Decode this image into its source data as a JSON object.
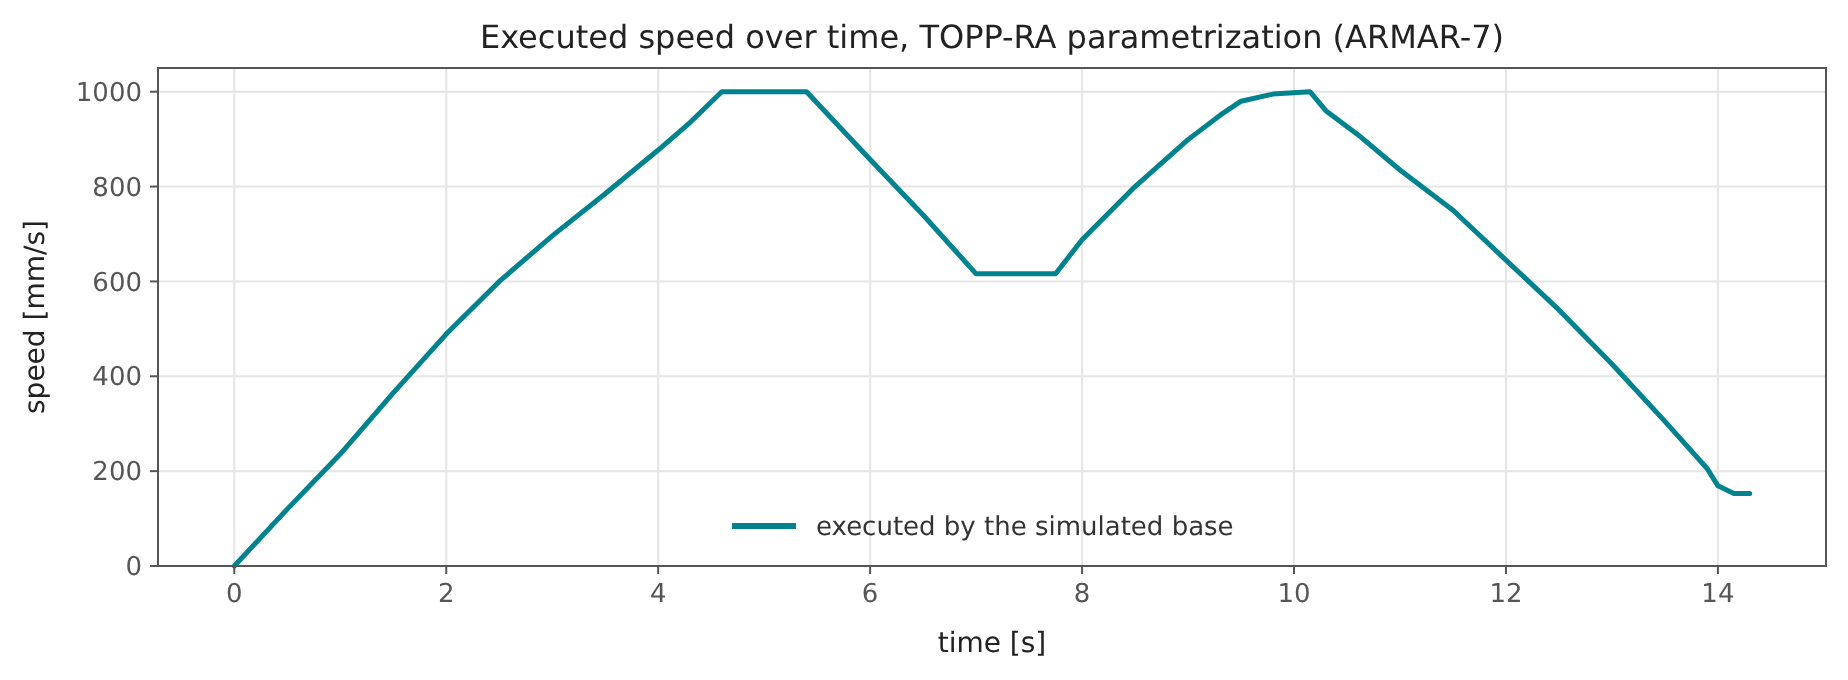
{
  "chart_data": {
    "type": "line",
    "title": "Executed speed over time, TOPP-RA parametrization (ARMAR-7)",
    "xlabel": "time [s]",
    "ylabel": "speed [mm/s]",
    "xlim": [
      -0.72,
      15.02
    ],
    "ylim": [
      0,
      1050
    ],
    "xticks": [
      0,
      2,
      4,
      6,
      8,
      10,
      12,
      14
    ],
    "yticks": [
      0,
      200,
      400,
      600,
      800,
      1000
    ],
    "grid": true,
    "legend": "bottom",
    "line_style": "solid",
    "series": [
      {
        "name": "executed by the simulated base",
        "color": "#00838f",
        "x": [
          0,
          0.5,
          1,
          1.5,
          2,
          2.5,
          3,
          3.5,
          4,
          4.3,
          4.6,
          5.4,
          6,
          6.5,
          7,
          7.75,
          8,
          8.5,
          9,
          9.3,
          9.5,
          9.8,
          10.15,
          10.3,
          10.6,
          11,
          11.5,
          12,
          12.5,
          13,
          13.5,
          13.9,
          14,
          14.15,
          14.3
        ],
        "values": [
          0,
          120,
          236,
          365,
          489,
          600,
          696,
          785,
          877,
          935,
          1000,
          1000,
          857,
          740,
          616,
          616,
          688,
          800,
          899,
          950,
          980,
          995,
          1000,
          960,
          910,
          835,
          750,
          645,
          540,
          426,
          305,
          205,
          169,
          153,
          153
        ]
      }
    ]
  }
}
